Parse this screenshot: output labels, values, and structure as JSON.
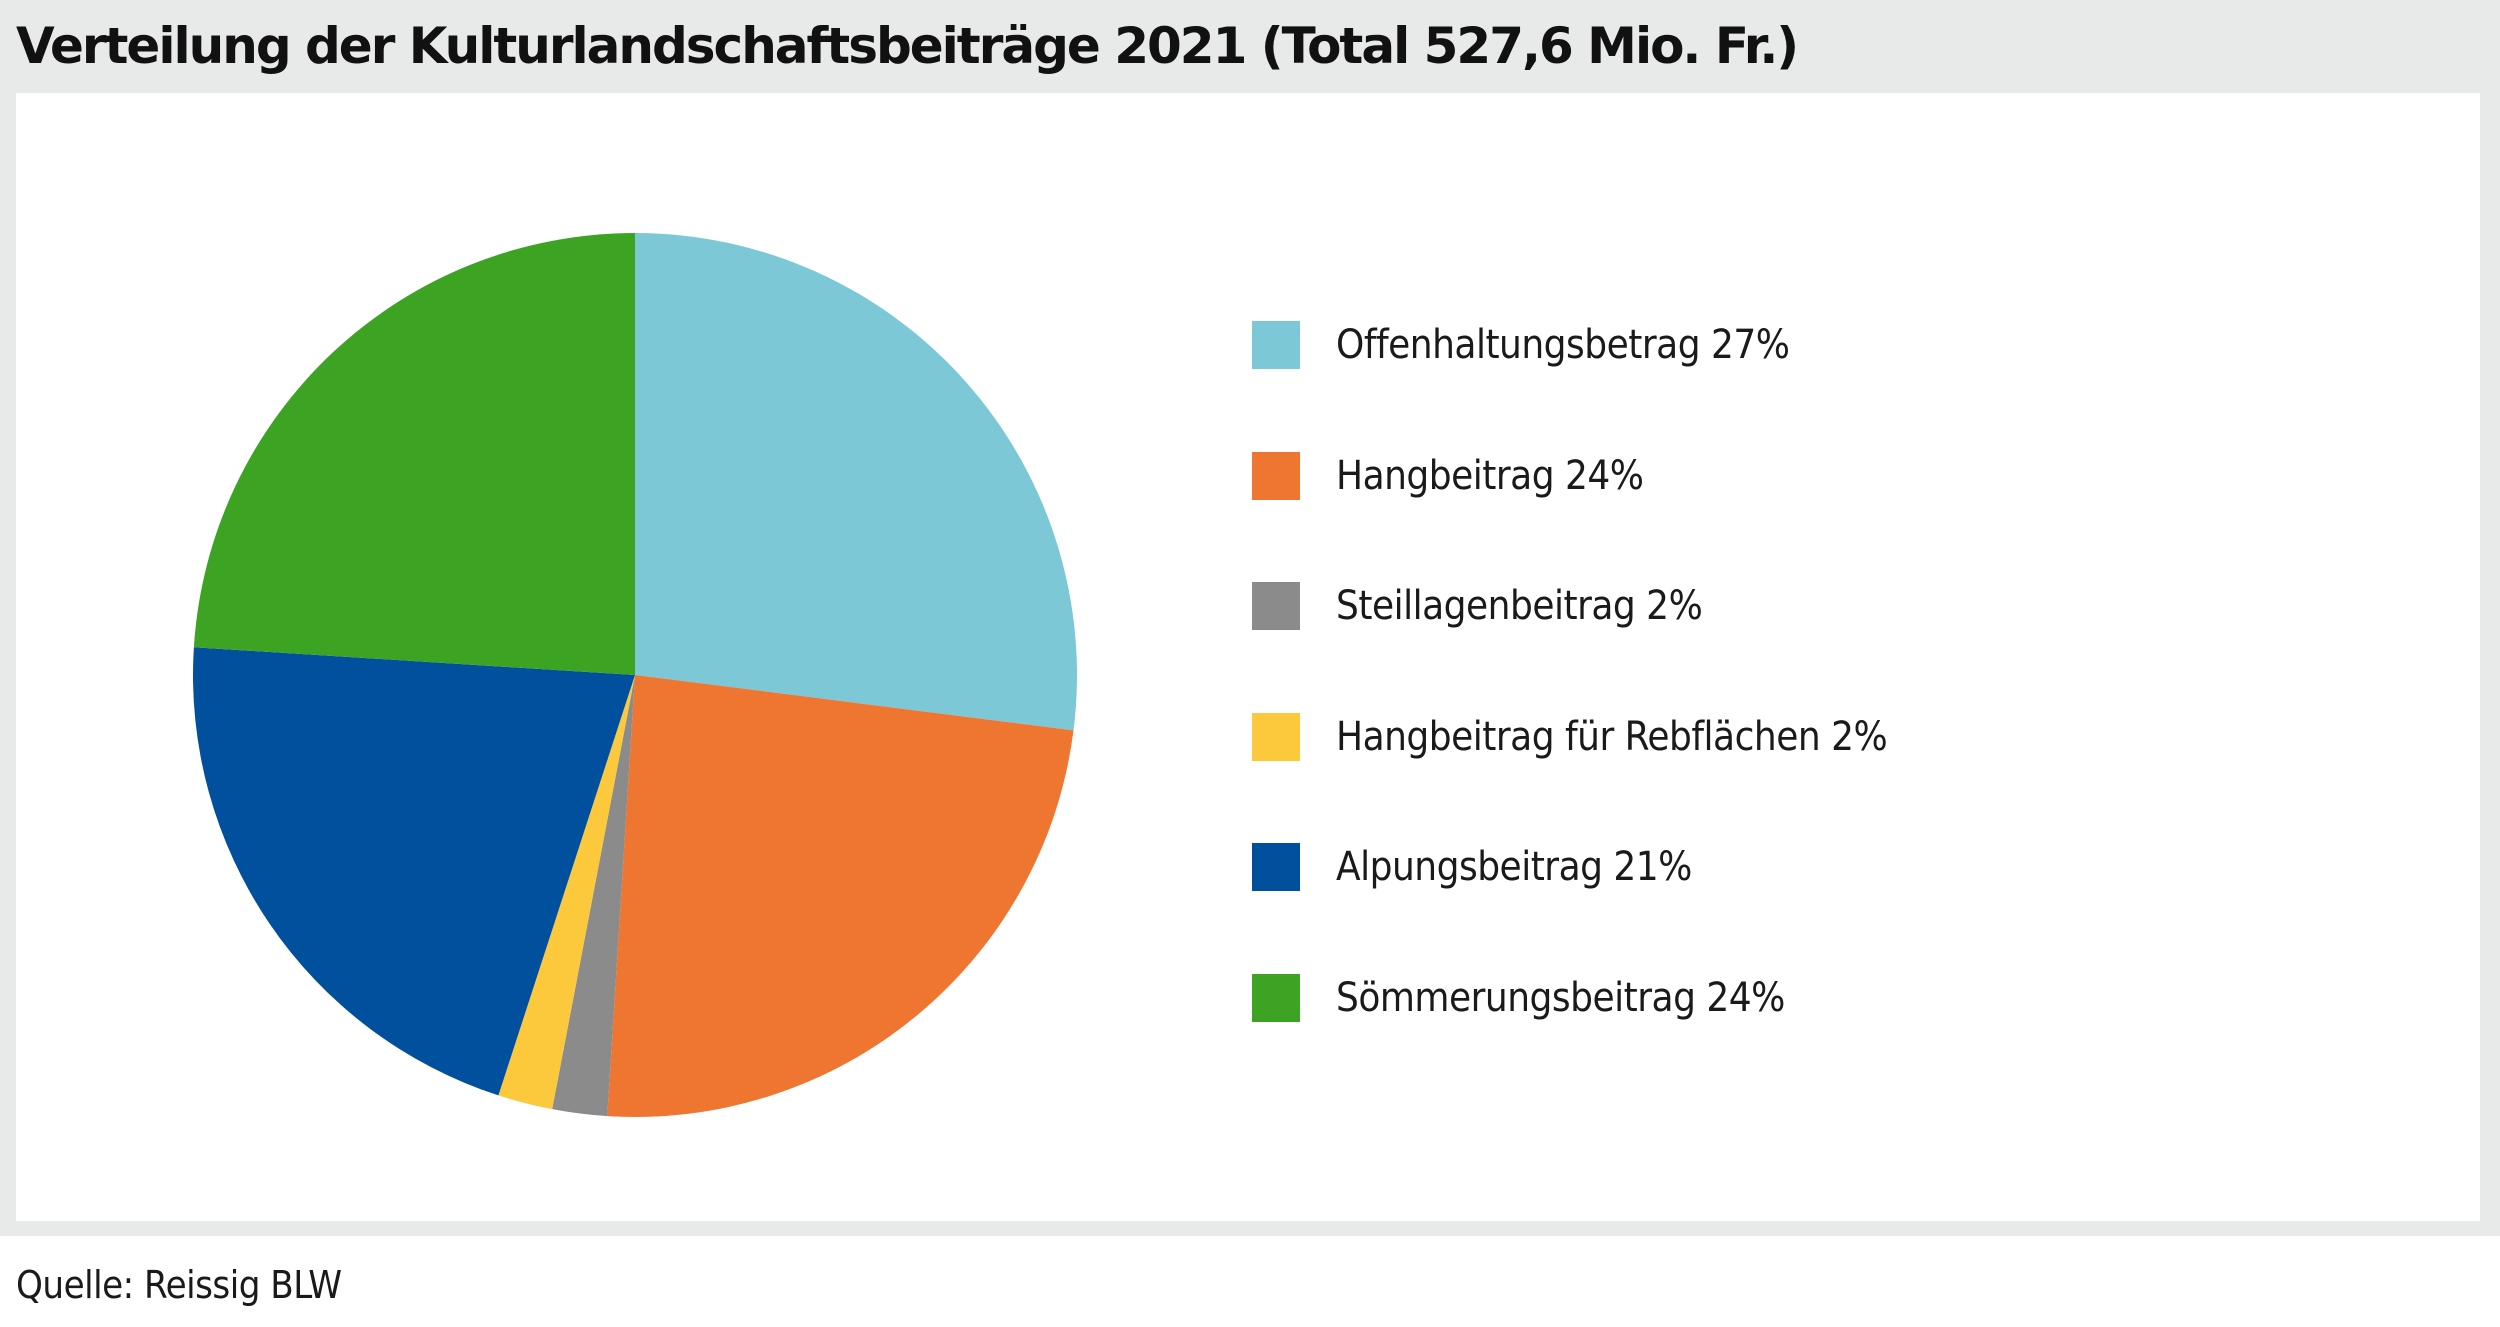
{
  "title": "Verteilung der Kulturlandschaftsbeiträge 2021 (Total 527,6 Mio. Fr.)",
  "source": "Quelle: Reissig BLW",
  "chart_data": {
    "type": "pie",
    "title": "Verteilung der Kulturlandschaftsbeiträge 2021 (Total 527,6 Mio. Fr.)",
    "total": "527,6 Mio. Fr.",
    "legend_position": "right",
    "slices": [
      {
        "label": "Offenhaltungsbetrag 27%",
        "name": "Offenhaltungsbetrag",
        "value": 27,
        "color": "#7cc8d6"
      },
      {
        "label": "Hangbeitrag 24%",
        "name": "Hangbeitrag",
        "value": 24,
        "color": "#ee7631"
      },
      {
        "label": "Steillagenbeitrag 2%",
        "name": "Steillagenbeitrag",
        "value": 2,
        "color": "#8b8b8b"
      },
      {
        "label": "Hangbeitrag für Rebflächen 2%",
        "name": "Hangbeitrag für Rebflächen",
        "value": 2,
        "color": "#fdc93c"
      },
      {
        "label": "Alpungsbeitrag 21%",
        "name": "Alpungsbeitrag",
        "value": 21,
        "color": "#00509d"
      },
      {
        "label": "Sömmerungsbeitrag 24%",
        "name": "Sömmerungsbeitrag",
        "value": 24,
        "color": "#3da323"
      }
    ]
  }
}
